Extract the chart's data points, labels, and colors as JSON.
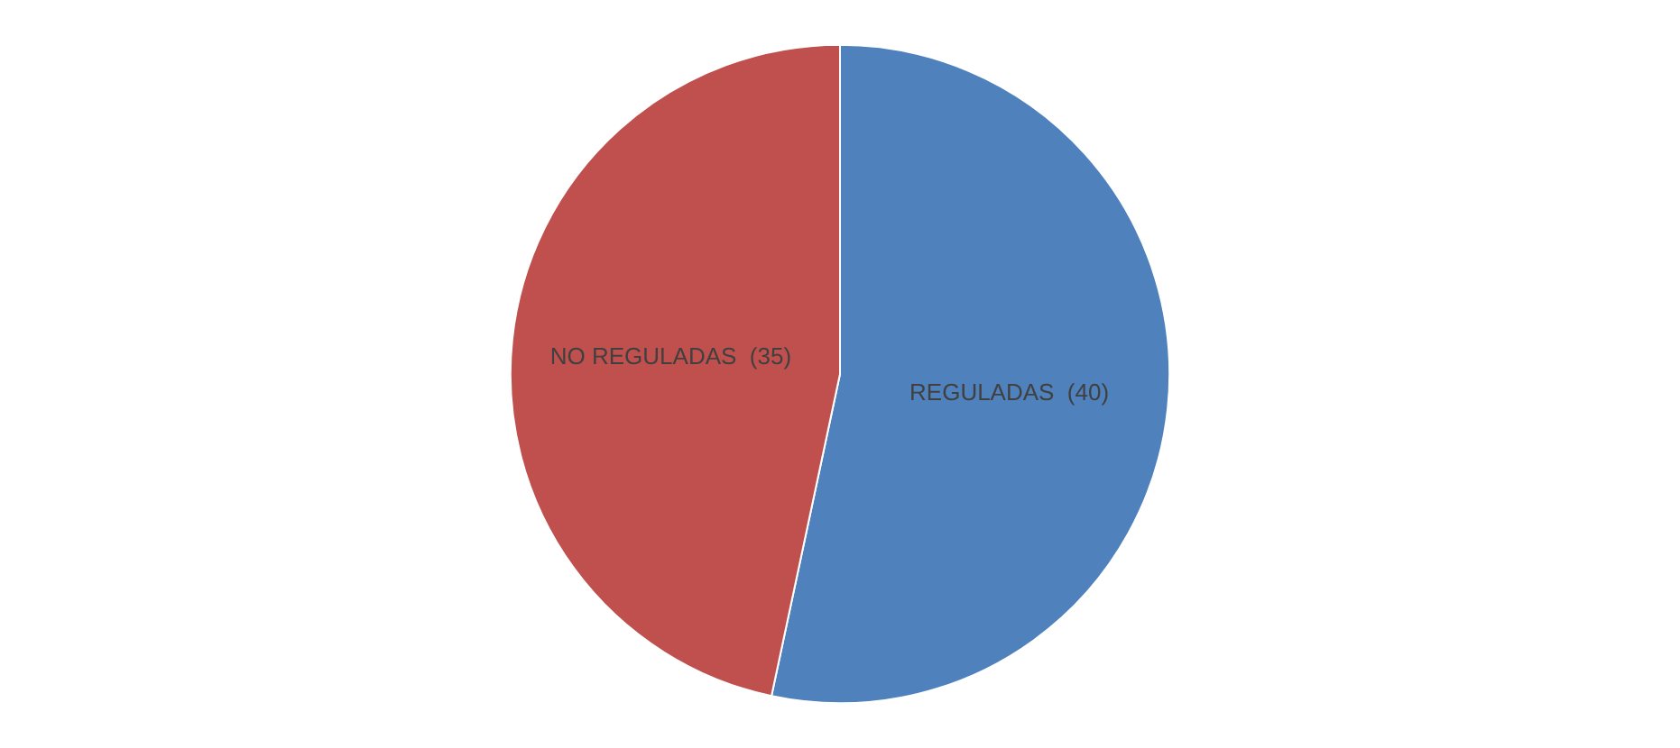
{
  "chart_data": {
    "type": "pie",
    "categories": [
      "REGULADAS",
      "NO REGULADAS"
    ],
    "values": [
      40,
      35
    ],
    "colors": [
      "#4f81bd",
      "#c0504d"
    ],
    "value_labels": [
      "(40)",
      "(35)"
    ],
    "legend": false
  }
}
